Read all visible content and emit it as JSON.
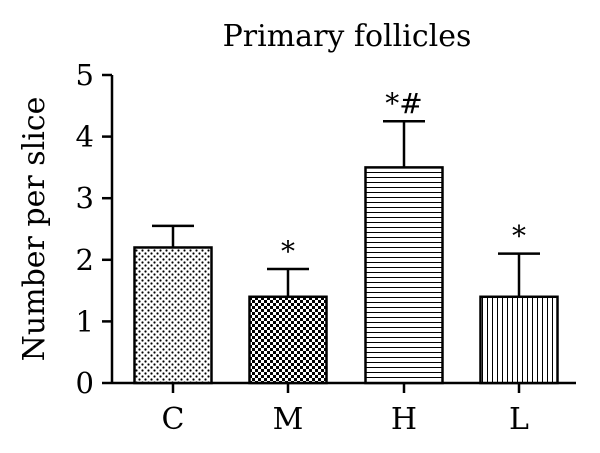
{
  "chart_data": {
    "type": "bar",
    "title": "Primary follicles",
    "xlabel": "",
    "ylabel": "Number per slice",
    "ylim": [
      0,
      5
    ],
    "yticks": [
      0,
      1,
      2,
      3,
      4,
      5
    ],
    "categories": [
      "C",
      "M",
      "H",
      "L"
    ],
    "values": [
      2.2,
      1.4,
      3.5,
      1.4
    ],
    "error_upper": [
      2.55,
      1.85,
      4.25,
      2.1
    ],
    "annotations": [
      "",
      "*",
      "*#",
      "*"
    ],
    "patterns": [
      "dots",
      "checker",
      "horizontal-lines",
      "vertical-lines"
    ],
    "colors": {
      "bar_fill": "#ffffff",
      "stroke": "#000000"
    },
    "grid": false,
    "legend": "none"
  }
}
